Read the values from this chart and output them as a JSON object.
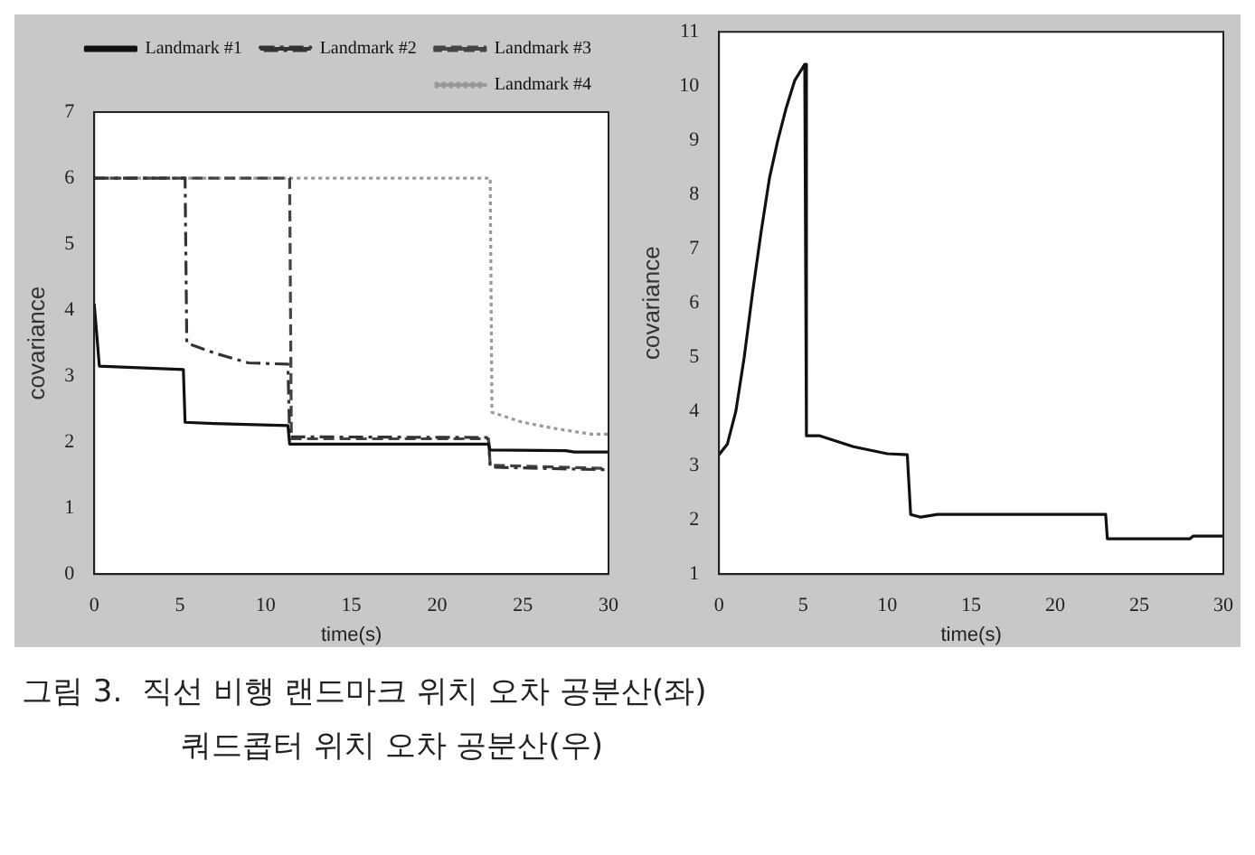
{
  "chart_data": [
    {
      "type": "line",
      "xlabel": "time(s)",
      "ylabel": "covariance",
      "xlim": [
        0,
        30
      ],
      "xticks": [
        0,
        5,
        10,
        15,
        20,
        25,
        30
      ],
      "ylim": [
        0,
        7
      ],
      "yticks": [
        0,
        1,
        2,
        3,
        4,
        5,
        6,
        7
      ],
      "legend": "top right",
      "grid": false,
      "marker": "none",
      "annotations": [
        "그림 3.  직선 비행 랜드마크 위치 오차 공분산(좌)\n쿼드콥터 위치 오차 공분산(우)"
      ],
      "series": [
        {
          "name": "Landmark #1",
          "color": "#111111",
          "line_style": "solid",
          "x": [
            0,
            0.3,
            5.2,
            5.3,
            7,
            11.3,
            11.4,
            23,
            23.1,
            27.5,
            28,
            30
          ],
          "values": [
            4.1,
            3.15,
            3.1,
            2.3,
            2.28,
            2.25,
            1.97,
            1.97,
            1.88,
            1.87,
            1.85,
            1.85
          ]
        },
        {
          "name": "Landmark #2",
          "color": "#333333",
          "line_style": "dashdot",
          "x": [
            0,
            5.3,
            5.4,
            7,
            9,
            11.3,
            11.4,
            23,
            23.1,
            30
          ],
          "values": [
            6,
            6,
            3.5,
            3.35,
            3.2,
            3.18,
            2.08,
            2.07,
            1.62,
            1.58
          ]
        },
        {
          "name": "Landmark #3",
          "color": "#444444",
          "line_style": "dashed",
          "x": [
            0,
            11.4,
            11.5,
            23,
            23.1,
            30
          ],
          "values": [
            6,
            6,
            2.05,
            2.05,
            1.65,
            1.6
          ]
        },
        {
          "name": "Landmark #4",
          "color": "#999999",
          "line_style": "dotted",
          "x": [
            0,
            23.1,
            23.2,
            25,
            27,
            29,
            30
          ],
          "values": [
            6,
            6,
            2.45,
            2.3,
            2.2,
            2.12,
            2.12
          ]
        }
      ]
    },
    {
      "type": "line",
      "xlabel": "time(s)",
      "ylabel": "covariance",
      "xlim": [
        0,
        30
      ],
      "xticks": [
        0,
        5,
        10,
        15,
        20,
        25,
        30
      ],
      "ylim": [
        1,
        11
      ],
      "yticks": [
        1,
        2,
        3,
        4,
        5,
        6,
        7,
        8,
        9,
        10,
        11
      ],
      "legend": false,
      "grid": false,
      "marker": "none",
      "series": [
        {
          "color": "#111111",
          "line_style": "solid",
          "x": [
            0,
            0.5,
            1,
            1.5,
            2,
            2.5,
            3,
            3.5,
            4,
            4.5,
            5.1,
            5.2,
            6,
            8,
            10,
            11.2,
            11.4,
            12,
            13,
            23,
            23.1,
            28,
            28.2,
            30
          ],
          "values": [
            3.2,
            3.4,
            4,
            5,
            6.2,
            7.3,
            8.3,
            9,
            9.6,
            10.1,
            10.4,
            3.55,
            3.55,
            3.35,
            3.22,
            3.2,
            2.1,
            2.05,
            2.1,
            2.1,
            1.65,
            1.65,
            1.7,
            1.7
          ]
        }
      ]
    }
  ]
}
